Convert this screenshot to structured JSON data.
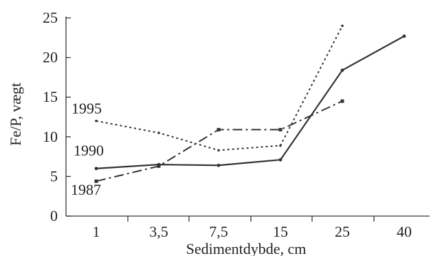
{
  "chart_data": {
    "type": "line",
    "title": "",
    "xlabel": "Sedimentdybde, cm",
    "ylabel": "Fe/P, vægt",
    "categories": [
      "1",
      "3,5",
      "7,5",
      "15",
      "25",
      "40"
    ],
    "ylim": [
      0,
      25
    ],
    "yticks": [
      "0",
      "5",
      "10",
      "15",
      "20",
      "25"
    ],
    "grid": false,
    "legend": "none",
    "series": [
      {
        "name": "1990",
        "style": "solid",
        "color": "#333333",
        "values": [
          6.0,
          6.5,
          6.4,
          7.1,
          18.4,
          22.7
        ]
      },
      {
        "name": "1995",
        "style": "dotted",
        "color": "#333333",
        "values": [
          12.0,
          10.5,
          8.3,
          8.9,
          24.0,
          null
        ]
      },
      {
        "name": "1987",
        "style": "dashdot",
        "color": "#333333",
        "values": [
          4.4,
          6.3,
          10.9,
          10.9,
          14.5,
          null
        ]
      }
    ]
  }
}
